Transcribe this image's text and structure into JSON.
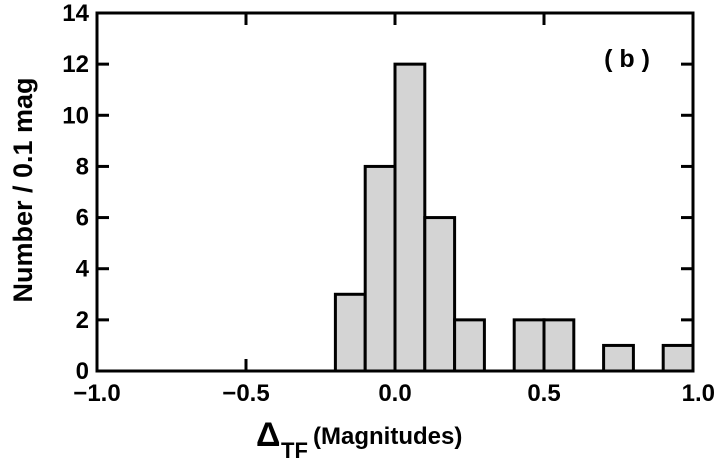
{
  "chart_data": {
    "type": "bar",
    "title": "",
    "panel_label": "( b )",
    "xlabel_symbol": "Δ",
    "xlabel_subscript": "TF",
    "xlabel_rest": "(Magnitudes)",
    "ylabel": "Number / 0.1 mag",
    "xlim": [
      -1.0,
      1.0
    ],
    "ylim": [
      0,
      14
    ],
    "x_ticks": [
      -1.0,
      -0.5,
      0.0,
      0.5,
      1.0
    ],
    "x_tick_labels": [
      "−1.0",
      "−0.5",
      "0.0",
      "0.5",
      "1.0"
    ],
    "y_ticks": [
      0,
      2,
      4,
      6,
      8,
      10,
      12,
      14
    ],
    "y_tick_labels": [
      "0",
      "2",
      "4",
      "6",
      "8",
      "10",
      "12",
      "14"
    ],
    "bin_width": 0.1,
    "bins": [
      {
        "x_start": -0.2,
        "x_end": -0.1,
        "count": 3
      },
      {
        "x_start": -0.1,
        "x_end": 0.0,
        "count": 8
      },
      {
        "x_start": 0.0,
        "x_end": 0.1,
        "count": 12
      },
      {
        "x_start": 0.1,
        "x_end": 0.2,
        "count": 6
      },
      {
        "x_start": 0.2,
        "x_end": 0.3,
        "count": 2
      },
      {
        "x_start": 0.4,
        "x_end": 0.5,
        "count": 2
      },
      {
        "x_start": 0.5,
        "x_end": 0.6,
        "count": 2
      },
      {
        "x_start": 0.7,
        "x_end": 0.8,
        "count": 1
      },
      {
        "x_start": 0.9,
        "x_end": 1.0,
        "count": 1
      }
    ],
    "bar_fill": "#d4d4d4",
    "bar_stroke": "#000000"
  }
}
